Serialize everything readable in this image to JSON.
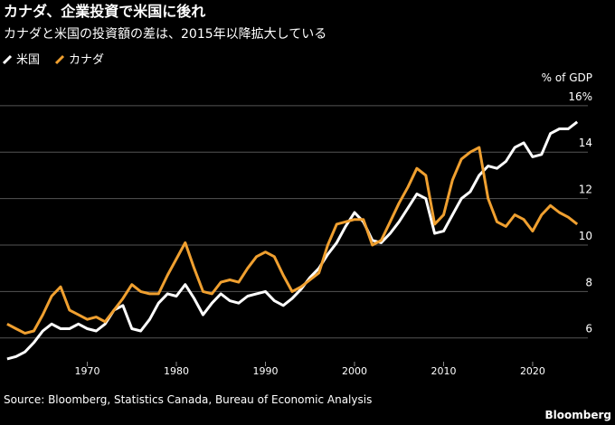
{
  "chart_data": {
    "type": "line",
    "title": "カナダ、企業投資で米国に後れ",
    "subtitle": "カナダと米国の投資額の差は、2015年以降拡大している",
    "y_axis_label": "% of GDP",
    "source": "Source: Bloomberg, Statistics Canada, Bureau of Economic Analysis",
    "brand": "Bloomberg",
    "x": [
      1961,
      1962,
      1963,
      1964,
      1965,
      1966,
      1967,
      1968,
      1969,
      1970,
      1971,
      1972,
      1973,
      1974,
      1975,
      1976,
      1977,
      1978,
      1979,
      1980,
      1981,
      1982,
      1983,
      1984,
      1985,
      1986,
      1987,
      1988,
      1989,
      1990,
      1991,
      1992,
      1993,
      1994,
      1995,
      1996,
      1997,
      1998,
      1999,
      2000,
      2001,
      2002,
      2003,
      2004,
      2005,
      2006,
      2007,
      2008,
      2009,
      2010,
      2011,
      2012,
      2013,
      2014,
      2015,
      2016,
      2017,
      2018,
      2019,
      2020,
      2021,
      2022,
      2023,
      2024,
      2025
    ],
    "series": [
      {
        "name": "米国",
        "color": "#ffffff",
        "values": [
          5.1,
          5.2,
          5.4,
          5.8,
          6.3,
          6.6,
          6.4,
          6.4,
          6.6,
          6.4,
          6.3,
          6.6,
          7.2,
          7.4,
          6.4,
          6.3,
          6.8,
          7.5,
          7.9,
          7.8,
          8.3,
          7.7,
          7.0,
          7.5,
          7.9,
          7.6,
          7.5,
          7.8,
          7.9,
          8.0,
          7.6,
          7.4,
          7.7,
          8.1,
          8.6,
          9.0,
          9.6,
          10.1,
          10.8,
          11.4,
          11.0,
          10.2,
          10.1,
          10.5,
          11.0,
          11.6,
          12.2,
          12.0,
          10.5,
          10.6,
          11.3,
          12.0,
          12.3,
          13.0,
          13.4,
          13.3,
          13.6,
          14.2,
          14.4,
          13.8,
          13.9,
          14.8,
          15.0,
          15.0,
          15.3
        ]
      },
      {
        "name": "カナダ",
        "color": "#f0a030",
        "values": [
          6.6,
          6.4,
          6.2,
          6.3,
          7.0,
          7.8,
          8.2,
          7.2,
          7.0,
          6.8,
          6.9,
          6.7,
          7.2,
          7.7,
          8.3,
          8.0,
          7.9,
          7.9,
          8.7,
          9.4,
          10.1,
          9.0,
          8.0,
          7.9,
          8.4,
          8.5,
          8.4,
          9.0,
          9.5,
          9.7,
          9.5,
          8.7,
          8.0,
          8.2,
          8.5,
          8.8,
          10.0,
          10.9,
          11.0,
          11.1,
          11.1,
          10.0,
          10.2,
          11.0,
          11.8,
          12.5,
          13.3,
          13.0,
          10.9,
          11.3,
          12.8,
          13.7,
          14.0,
          14.2,
          12.0,
          11.0,
          10.8,
          11.3,
          11.1,
          10.6,
          11.3,
          11.7,
          11.4,
          11.2,
          10.9
        ]
      }
    ],
    "xlim": [
      1960.2,
      2026.2
    ],
    "xticks": [
      1970,
      1980,
      1990,
      2000,
      2010,
      2020
    ],
    "ylim": [
      4.9,
      16.5
    ],
    "yticks": [
      6,
      8,
      10,
      12,
      14,
      {
        "value": 16,
        "label": "16%"
      }
    ],
    "grid": true
  }
}
